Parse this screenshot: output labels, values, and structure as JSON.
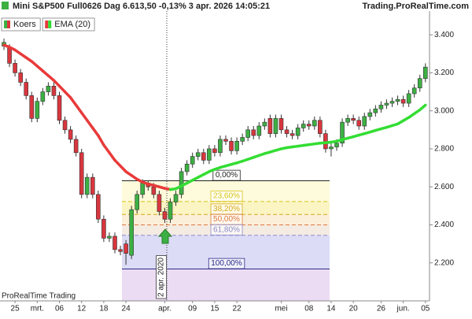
{
  "header": {
    "title": "Mini S&P500 Full0626 Dag 6.613,50 -0,13% 3 apr. 2026 14:05:21",
    "site": "Trading.ProRealTime.com"
  },
  "footer": "ProRealTime Trading",
  "chart_data": {
    "type": "candlestick",
    "categories": [
      null,
      null,
      "25",
      null,
      null,
      null,
      "mrt.",
      null,
      null,
      null,
      "06",
      null,
      null,
      null,
      "12",
      null,
      null,
      null,
      "18",
      null,
      null,
      null,
      "24",
      null,
      null,
      null,
      null,
      null,
      null,
      "apr.",
      null,
      null,
      null,
      null,
      "09",
      null,
      null,
      null,
      "15",
      null,
      null,
      null,
      "22",
      null,
      null,
      null,
      null,
      null,
      null,
      null,
      "mei",
      null,
      null,
      null,
      null,
      "08",
      null,
      null,
      null,
      "14",
      null,
      null,
      null,
      "20",
      null,
      null,
      null,
      null,
      "26",
      null,
      null,
      null,
      "jun.",
      null,
      null,
      null,
      "05"
    ],
    "series": [
      {
        "name": "Koers",
        "color": "#3cb043",
        "color_down": "#d9363e",
        "open": [
          3340,
          3330,
          3250,
          3200,
          3150,
          3080,
          2960,
          3050,
          3100,
          3130,
          3080,
          2950,
          2900,
          2850,
          2780,
          2560,
          2650,
          2560,
          2430,
          2330,
          2340,
          2270,
          2300,
          2240,
          2480,
          2560,
          2620,
          2600,
          2560,
          2470,
          2430,
          2520,
          2560,
          2680,
          2720,
          2760,
          2780,
          2740,
          2800,
          2780,
          2850,
          2840,
          2790,
          2840,
          2860,
          2900,
          2870,
          2920,
          2960,
          2880,
          2960,
          2900,
          2880,
          2870,
          2910,
          2930,
          2920,
          2950,
          2880,
          2800,
          2810,
          2830,
          2940,
          2960,
          2950,
          2920,
          2970,
          2990,
          3010,
          3030,
          3040,
          3050,
          3060,
          3040,
          3090,
          3120,
          3170
        ],
        "high": [
          3380,
          3350,
          3270,
          3220,
          3170,
          3100,
          3070,
          3120,
          3150,
          3150,
          3100,
          2970,
          2920,
          2870,
          2800,
          2670,
          2670,
          2580,
          2450,
          2360,
          2360,
          2290,
          2320,
          2500,
          2580,
          2640,
          2632,
          2620,
          2580,
          2490,
          2540,
          2580,
          2700,
          2740,
          2780,
          2800,
          2800,
          2820,
          2820,
          2870,
          2870,
          2860,
          2860,
          2880,
          2920,
          2920,
          2940,
          2960,
          2980,
          2980,
          2980,
          2920,
          2900,
          2930,
          2950,
          2950,
          2970,
          2970,
          2900,
          2830,
          2850,
          2960,
          2980,
          2980,
          2970,
          2990,
          3010,
          3030,
          3050,
          3060,
          3070,
          3080,
          3080,
          3110,
          3140,
          3190,
          3250
        ],
        "low": [
          3320,
          3230,
          3180,
          3130,
          3060,
          2940,
          2940,
          3030,
          3080,
          3060,
          2930,
          2880,
          2830,
          2760,
          2540,
          2540,
          2540,
          2410,
          2310,
          2310,
          2250,
          2240,
          2190,
          2220,
          2460,
          2540,
          2580,
          2540,
          2450,
          2410,
          2410,
          2500,
          2540,
          2660,
          2700,
          2740,
          2720,
          2720,
          2760,
          2760,
          2820,
          2770,
          2770,
          2820,
          2840,
          2850,
          2850,
          2900,
          2860,
          2860,
          2880,
          2860,
          2850,
          2850,
          2890,
          2900,
          2900,
          2860,
          2780,
          2760,
          2790,
          2810,
          2920,
          2930,
          2900,
          2900,
          2950,
          2970,
          2990,
          3010,
          3020,
          3030,
          3020,
          3020,
          3070,
          3100,
          3150
        ],
        "close": [
          3360,
          3250,
          3200,
          3150,
          3080,
          2960,
          3050,
          3100,
          3130,
          3080,
          2950,
          2900,
          2850,
          2780,
          2560,
          2650,
          2560,
          2430,
          2330,
          2340,
          2270,
          2260,
          2250,
          2480,
          2560,
          2620,
          2600,
          2560,
          2470,
          2430,
          2520,
          2560,
          2680,
          2720,
          2760,
          2780,
          2740,
          2800,
          2780,
          2850,
          2840,
          2790,
          2840,
          2860,
          2900,
          2870,
          2920,
          2940,
          2880,
          2960,
          2900,
          2880,
          2870,
          2910,
          2930,
          2920,
          2950,
          2880,
          2800,
          2810,
          2830,
          2940,
          2960,
          2950,
          2920,
          2970,
          2990,
          3010,
          3030,
          3040,
          3050,
          3060,
          3040,
          3090,
          3120,
          3170,
          3230
        ]
      },
      {
        "name": "EMA (20)",
        "type": "line",
        "color": "#e83a3a",
        "color_rising": "#33dd33",
        "values": [
          3346,
          3335,
          3320,
          3300,
          3280,
          3260,
          3235,
          3210,
          3185,
          3160,
          3130,
          3100,
          3070,
          3030,
          2990,
          2950,
          2910,
          2870,
          2820,
          2780,
          2740,
          2710,
          2680,
          2660,
          2640,
          2625,
          2615,
          2608,
          2600,
          2592,
          2586,
          2590,
          2605,
          2620,
          2635,
          2650,
          2665,
          2680,
          2692,
          2702,
          2710,
          2718,
          2726,
          2735,
          2745,
          2755,
          2765,
          2775,
          2783,
          2792,
          2800,
          2806,
          2810,
          2814,
          2818,
          2822,
          2826,
          2830,
          2832,
          2835,
          2840,
          2848,
          2856,
          2864,
          2872,
          2880,
          2888,
          2897,
          2905,
          2913,
          2922,
          2931,
          2948,
          2965,
          2985,
          3005,
          3030
        ]
      }
    ],
    "ylim": [
      2000,
      3525
    ],
    "yticks": [
      {
        "value": 2200,
        "label": "2.200"
      },
      {
        "value": 2400,
        "label": "2.400"
      },
      {
        "value": 2600,
        "label": "2.600"
      },
      {
        "value": 2800,
        "label": "2.800"
      },
      {
        "value": 3000,
        "label": "3.000"
      },
      {
        "value": 3200,
        "label": "3.200"
      },
      {
        "value": 3400,
        "label": "3.400"
      }
    ],
    "fibonacci": {
      "high": 2632,
      "low": 2168,
      "color_below": "#ecdcf3",
      "levels": [
        {
          "ratio": 0,
          "label": "0,00%",
          "color": "#222222",
          "fill": "#fdfbdc"
        },
        {
          "ratio": 23.6,
          "label": "23,60%",
          "color": "#d8c41a",
          "fill": "#fbf5c4"
        },
        {
          "ratio": 38.2,
          "label": "38,20%",
          "color": "#d8a81a",
          "fill": "#fcefd8"
        },
        {
          "ratio": 50,
          "label": "50,00%",
          "color": "#e07840",
          "fill": "#f4ebe2"
        },
        {
          "ratio": 61.8,
          "label": "61,80%",
          "color": "#8c8ccc",
          "fill": "#dcdcf6"
        },
        {
          "ratio": 100,
          "label": "100,00%",
          "color": "#2a2a88",
          "fill": null
        }
      ]
    },
    "date_marker": "2 apr. 2020"
  }
}
